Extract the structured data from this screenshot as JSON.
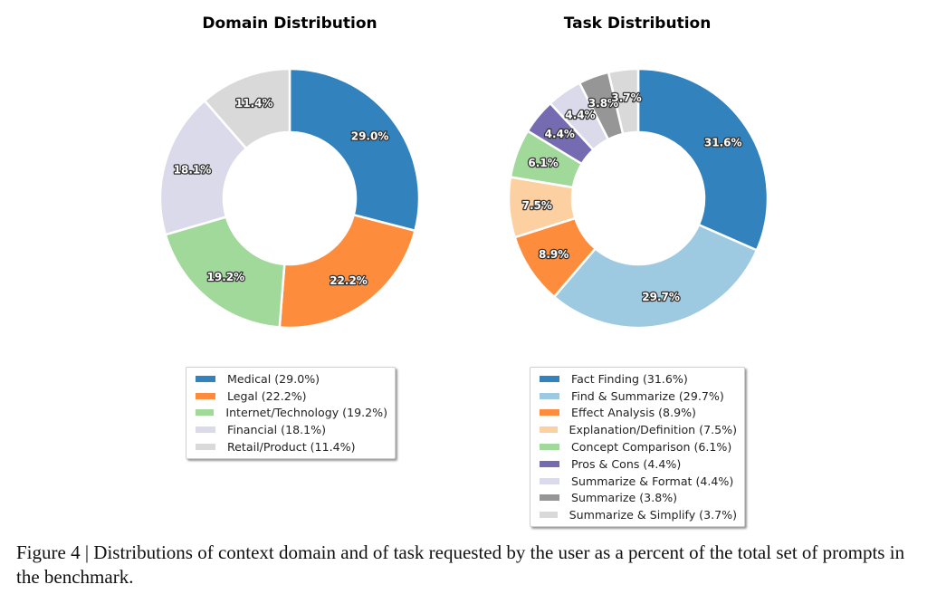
{
  "chart_data": [
    {
      "type": "pie",
      "style": "donut",
      "title": "Domain Distribution",
      "categories": [
        "Medical",
        "Legal",
        "Internet/Technology",
        "Financial",
        "Retail/Product"
      ],
      "values": [
        29.0,
        22.2,
        19.2,
        18.1,
        11.4
      ],
      "labels": [
        "29.0%",
        "22.2%",
        "19.2%",
        "18.1%",
        "11.4%"
      ],
      "legend": [
        "Medical (29.0%)",
        "Legal (22.2%)",
        "Internet/Technology (19.2%)",
        "Financial (18.1%)",
        "Retail/Product (11.4%)"
      ],
      "colors": [
        "#3182bd",
        "#fd8d3c",
        "#a1d99b",
        "#dadaeb",
        "#d9d9d9"
      ],
      "legend_position": "bottom",
      "start_angle_deg": 90,
      "direction": "clockwise"
    },
    {
      "type": "pie",
      "style": "donut",
      "title": "Task Distribution",
      "categories": [
        "Fact Finding",
        "Find & Summarize",
        "Effect Analysis",
        "Explanation/Definition",
        "Concept Comparison",
        "Pros & Cons",
        "Summarize & Format",
        "Summarize",
        "Summarize & Simplify"
      ],
      "values": [
        31.6,
        29.7,
        8.9,
        7.5,
        6.1,
        4.4,
        4.4,
        3.8,
        3.7
      ],
      "labels": [
        "31.6%",
        "29.7%",
        "8.9%",
        "7.5%",
        "6.1%",
        "4.4%",
        "4.4%",
        "3.8%",
        "3.7%"
      ],
      "legend": [
        "Fact Finding (31.6%)",
        "Find & Summarize (29.7%)",
        "Effect Analysis (8.9%)",
        "Explanation/Definition (7.5%)",
        "Concept Comparison (6.1%)",
        "Pros & Cons (4.4%)",
        "Summarize & Format (4.4%)",
        "Summarize (3.8%)",
        "Summarize & Simplify (3.7%)"
      ],
      "colors": [
        "#3182bd",
        "#9ecae1",
        "#fd8d3c",
        "#fdd0a2",
        "#a1d99b",
        "#756bb1",
        "#dadaeb",
        "#969696",
        "#d9d9d9"
      ],
      "legend_position": "bottom",
      "start_angle_deg": 90,
      "direction": "clockwise"
    }
  ],
  "caption": "Figure 4 | Distributions of context domain and of task requested by the user as a percent of the total set of prompts in the benchmark."
}
